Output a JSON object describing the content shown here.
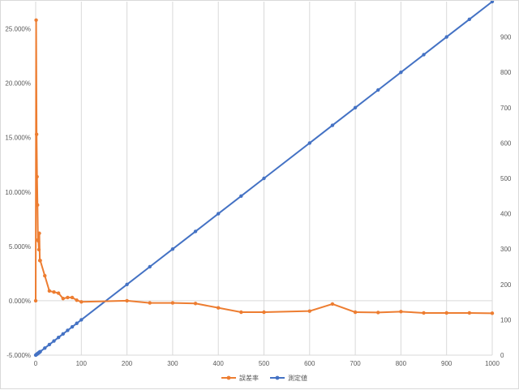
{
  "chart_data": {
    "type": "line",
    "x": [
      0,
      1,
      2,
      3,
      4,
      5,
      6,
      7,
      8,
      9,
      10,
      20,
      30,
      40,
      50,
      60,
      70,
      80,
      90,
      100,
      200,
      250,
      300,
      350,
      400,
      450,
      500,
      600,
      650,
      700,
      750,
      800,
      850,
      900,
      950,
      1000
    ],
    "series": [
      {
        "name": "誤差率",
        "axis": "left",
        "color": "#ED7D31",
        "values": [
          0.0,
          25.8,
          15.3,
          11.4,
          8.8,
          5.6,
          5.5,
          4.7,
          6.2,
          3.7,
          3.7,
          2.3,
          0.9,
          0.8,
          0.7,
          0.2,
          0.3,
          0.3,
          0.05,
          -0.1,
          0.0,
          -0.2,
          -0.2,
          -0.25,
          -0.65,
          -1.05,
          -1.05,
          -0.95,
          -0.3,
          -1.05,
          -1.08,
          -1.0,
          -1.12,
          -1.12,
          -1.12,
          -1.15
        ]
      },
      {
        "name": "測定値",
        "axis": "right",
        "color": "#4472C4",
        "values": [
          0,
          1,
          2,
          3,
          4,
          5,
          6,
          7,
          8,
          9,
          10,
          20,
          30,
          40,
          50,
          60,
          70,
          80,
          90,
          100,
          200,
          250,
          300,
          350,
          400,
          450,
          500,
          600,
          650,
          700,
          750,
          800,
          850,
          900,
          950,
          1000
        ]
      }
    ],
    "xlim": [
      0,
      1000
    ],
    "xticks": [
      "0",
      "100",
      "200",
      "300",
      "400",
      "500",
      "600",
      "700",
      "800",
      "900",
      "1000"
    ],
    "y_left": {
      "lim": [
        -5,
        27.5
      ],
      "ticks": [
        "-5.000%",
        "0.000%",
        "5.000%",
        "10.000%",
        "15.000%",
        "20.000%",
        "25.000%"
      ]
    },
    "y_right": {
      "lim": [
        0,
        1000
      ],
      "ticks": [
        "0",
        "100",
        "200",
        "300",
        "400",
        "500",
        "600",
        "700",
        "800",
        "900"
      ]
    },
    "grid": "vertical",
    "legend": "bottom-center"
  }
}
